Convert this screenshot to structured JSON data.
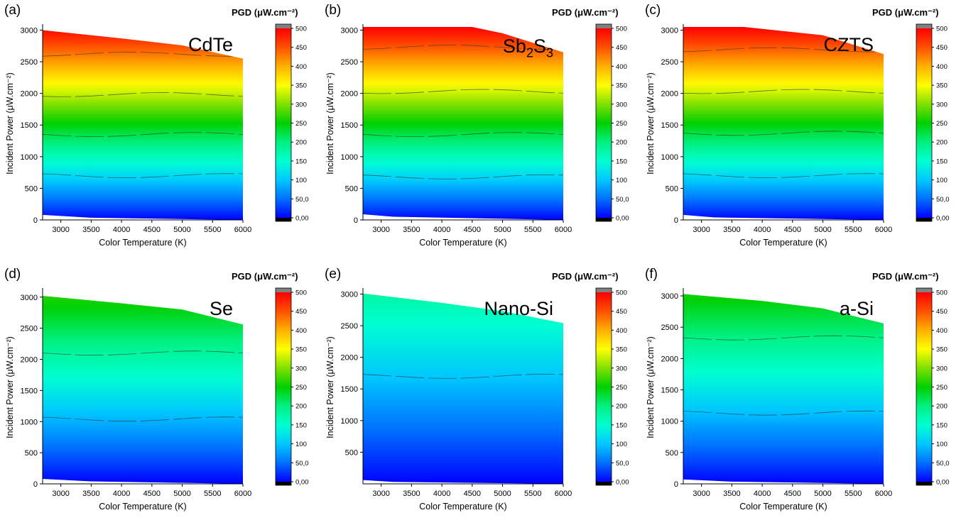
{
  "colorbar": {
    "ticks": [
      "0,00",
      "50,0",
      "100",
      "150",
      "200",
      "250",
      "300",
      "350",
      "400",
      "450",
      "500"
    ],
    "stops": [
      "#000000",
      "#0000ff",
      "#0070ff",
      "#00c8ff",
      "#00ffd0",
      "#00f080",
      "#00d000",
      "#80e000",
      "#ffff00",
      "#ffb000",
      "#ff5000",
      "#ff0000"
    ],
    "cap_color": "#808080"
  },
  "chart_data": [
    {
      "type": "heatmap",
      "panel_label": "(a)",
      "material": "CdTe",
      "material_sub": "",
      "title": "PGD (μW.cm⁻²)",
      "xlabel": "Color Temperature (K)",
      "ylabel": "Incident Power (μW.cm⁻²)",
      "xlim": [
        2700,
        6000
      ],
      "ylim": [
        0,
        3050
      ],
      "xticks": [
        "3000",
        "3500",
        "4000",
        "4500",
        "5000",
        "5500",
        "6000"
      ],
      "yticks": [
        "0",
        "500",
        "1000",
        "1500",
        "2000",
        "2500",
        "3000"
      ],
      "zlim": [
        0,
        500
      ],
      "pgd_at_max_power": 500,
      "upper_boundary": [
        [
          2700,
          3000
        ],
        [
          4000,
          2870
        ],
        [
          5000,
          2760
        ],
        [
          6000,
          2550
        ]
      ],
      "lower_boundary": [
        [
          2700,
          80
        ],
        [
          3500,
          35
        ],
        [
          6000,
          0
        ]
      ],
      "contour_levels_y": [
        700,
        1350,
        1980,
        2620
      ]
    },
    {
      "type": "heatmap",
      "panel_label": "(b)",
      "material": "Sb",
      "material_sub": "2",
      "material_rest": "S",
      "material_sub2": "3",
      "title": "PGD (μW.cm⁻²)",
      "xlabel": "Color Temperature (K)",
      "ylabel": "Incident Power (μW.cm⁻²)",
      "xlim": [
        2700,
        6000
      ],
      "ylim": [
        0,
        3050
      ],
      "xticks": [
        "3000",
        "3500",
        "4000",
        "4500",
        "5000",
        "5500",
        "6000"
      ],
      "yticks": [
        "0",
        "500",
        "1000",
        "1500",
        "2000",
        "2500",
        "3000"
      ],
      "zlim": [
        0,
        500
      ],
      "pgd_at_max_power": 500,
      "upper_boundary": [
        [
          2700,
          3050
        ],
        [
          4500,
          3050
        ],
        [
          5000,
          2950
        ],
        [
          6000,
          2650
        ]
      ],
      "lower_boundary": [
        [
          2700,
          90
        ],
        [
          3200,
          50
        ],
        [
          6000,
          0
        ]
      ],
      "contour_levels_y": [
        680,
        1350,
        2030,
        2730
      ]
    },
    {
      "type": "heatmap",
      "panel_label": "(c)",
      "material": "CZTS",
      "material_sub": "",
      "title": "PGD (μW.cm⁻²)",
      "xlabel": "Color Temperature (K)",
      "ylabel": "Incident Power (μW.cm⁻²)",
      "xlim": [
        2700,
        6000
      ],
      "ylim": [
        0,
        3050
      ],
      "xticks": [
        "3000",
        "3500",
        "4000",
        "4500",
        "5000",
        "5500",
        "6000"
      ],
      "yticks": [
        "0",
        "500",
        "1000",
        "1500",
        "2000",
        "2500",
        "3000"
      ],
      "zlim": [
        0,
        500
      ],
      "pgd_at_max_power": 500,
      "upper_boundary": [
        [
          2700,
          3050
        ],
        [
          3700,
          3050
        ],
        [
          5000,
          2920
        ],
        [
          6000,
          2620
        ]
      ],
      "lower_boundary": [
        [
          2700,
          80
        ],
        [
          3200,
          40
        ],
        [
          6000,
          0
        ]
      ],
      "contour_levels_y": [
        700,
        1370,
        2030,
        2690
      ]
    },
    {
      "type": "heatmap",
      "panel_label": "(d)",
      "material": "Se",
      "material_sub": "",
      "title": "PGD (μW.cm⁻²)",
      "xlabel": "Color Temperature (K)",
      "ylabel": "Incident Power (μW.cm⁻²)",
      "xlim": [
        2700,
        6000
      ],
      "ylim": [
        0,
        3100
      ],
      "xticks": [
        "3000",
        "3500",
        "4000",
        "4500",
        "5000",
        "5500",
        "6000"
      ],
      "yticks": [
        "0",
        "500",
        "1000",
        "1500",
        "2000",
        "2500",
        "3000"
      ],
      "zlim": [
        0,
        500
      ],
      "pgd_at_max_power": 270,
      "upper_boundary": [
        [
          2700,
          3020
        ],
        [
          4000,
          2900
        ],
        [
          5000,
          2800
        ],
        [
          6000,
          2560
        ]
      ],
      "lower_boundary": [
        [
          2700,
          80
        ],
        [
          3500,
          40
        ],
        [
          6000,
          0
        ]
      ],
      "contour_levels_y": [
        1040,
        2100
      ]
    },
    {
      "type": "heatmap",
      "panel_label": "(e)",
      "material": "Nano-Si",
      "material_sub": "",
      "title": "PGD (μW.cm⁻²)",
      "xlabel": "Color Temperature (K)",
      "ylabel": "Incident Power (μW.cm⁻²)",
      "xlim": [
        2700,
        6000
      ],
      "ylim": [
        0,
        3050
      ],
      "xticks": [
        "3000",
        "3500",
        "4000",
        "4500",
        "5000",
        "5500",
        "6000"
      ],
      "yticks": [
        "500",
        "1000",
        "1500",
        "2000",
        "2500",
        "3000"
      ],
      "zlim": [
        0,
        500
      ],
      "pgd_at_max_power": 180,
      "upper_boundary": [
        [
          2700,
          3010
        ],
        [
          4000,
          2860
        ],
        [
          5000,
          2730
        ],
        [
          6000,
          2540
        ]
      ],
      "lower_boundary": [
        [
          2700,
          60
        ],
        [
          3200,
          30
        ],
        [
          6000,
          0
        ]
      ],
      "contour_levels_y": [
        1700
      ]
    },
    {
      "type": "heatmap",
      "panel_label": "(f)",
      "material": "a-Si",
      "material_sub": "",
      "title": "PGD (μW.cm⁻²)",
      "xlabel": "Color Temperature (K)",
      "ylabel": "Incident Power (μW.cm⁻²)",
      "xlim": [
        2700,
        6000
      ],
      "ylim": [
        0,
        3080
      ],
      "xticks": [
        "3000",
        "3500",
        "4000",
        "4500",
        "5000",
        "5500",
        "6000"
      ],
      "yticks": [
        "0",
        "500",
        "1000",
        "1500",
        "2000",
        "2500",
        "3000"
      ],
      "zlim": [
        0,
        500
      ],
      "pgd_at_max_power": 260,
      "upper_boundary": [
        [
          2700,
          3030
        ],
        [
          4000,
          2920
        ],
        [
          5000,
          2800
        ],
        [
          6000,
          2560
        ]
      ],
      "lower_boundary": [
        [
          2700,
          70
        ],
        [
          3500,
          35
        ],
        [
          6000,
          0
        ]
      ],
      "contour_levels_y": [
        1130,
        2330
      ]
    }
  ]
}
